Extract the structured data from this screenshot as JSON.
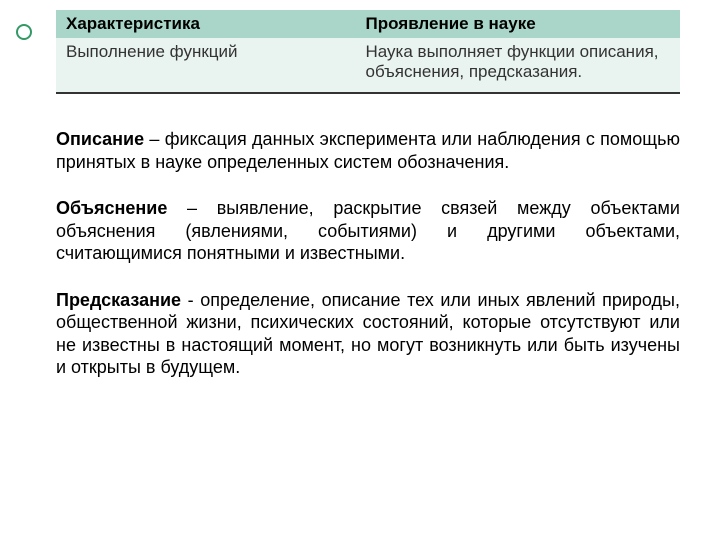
{
  "table": {
    "header_bg": "#a9d6c8",
    "cell_bg": "#e9f3ef",
    "border_color": "#333333",
    "columns": [
      {
        "label": "Характеристика",
        "width": "48%"
      },
      {
        "label": "Проявление в науке",
        "width": "52%"
      }
    ],
    "row": {
      "c1": "Выполнение функций",
      "c2": "Наука выполняет функции описания, объяснения, предсказания."
    }
  },
  "bullet_color": "#339966",
  "paragraphs": [
    {
      "term": "Описание",
      "text": " – фиксация данных эксперимента или наблюдения с помощью принятых в науке определенных систем обозначения."
    },
    {
      "term": "Объяснение",
      "text": " – выявление, раскрытие связей между объектами объяснения (явлениями, событиями) и другими объектами, считающимися понятными и известными."
    },
    {
      "term": "Предсказание",
      "text": " - определение, описание тех или иных явлений природы, общественной жизни, психических состояний, которые отсутствуют или не известны в настоящий момент, но могут возникнуть или быть изучены и открыты в будущем."
    }
  ]
}
